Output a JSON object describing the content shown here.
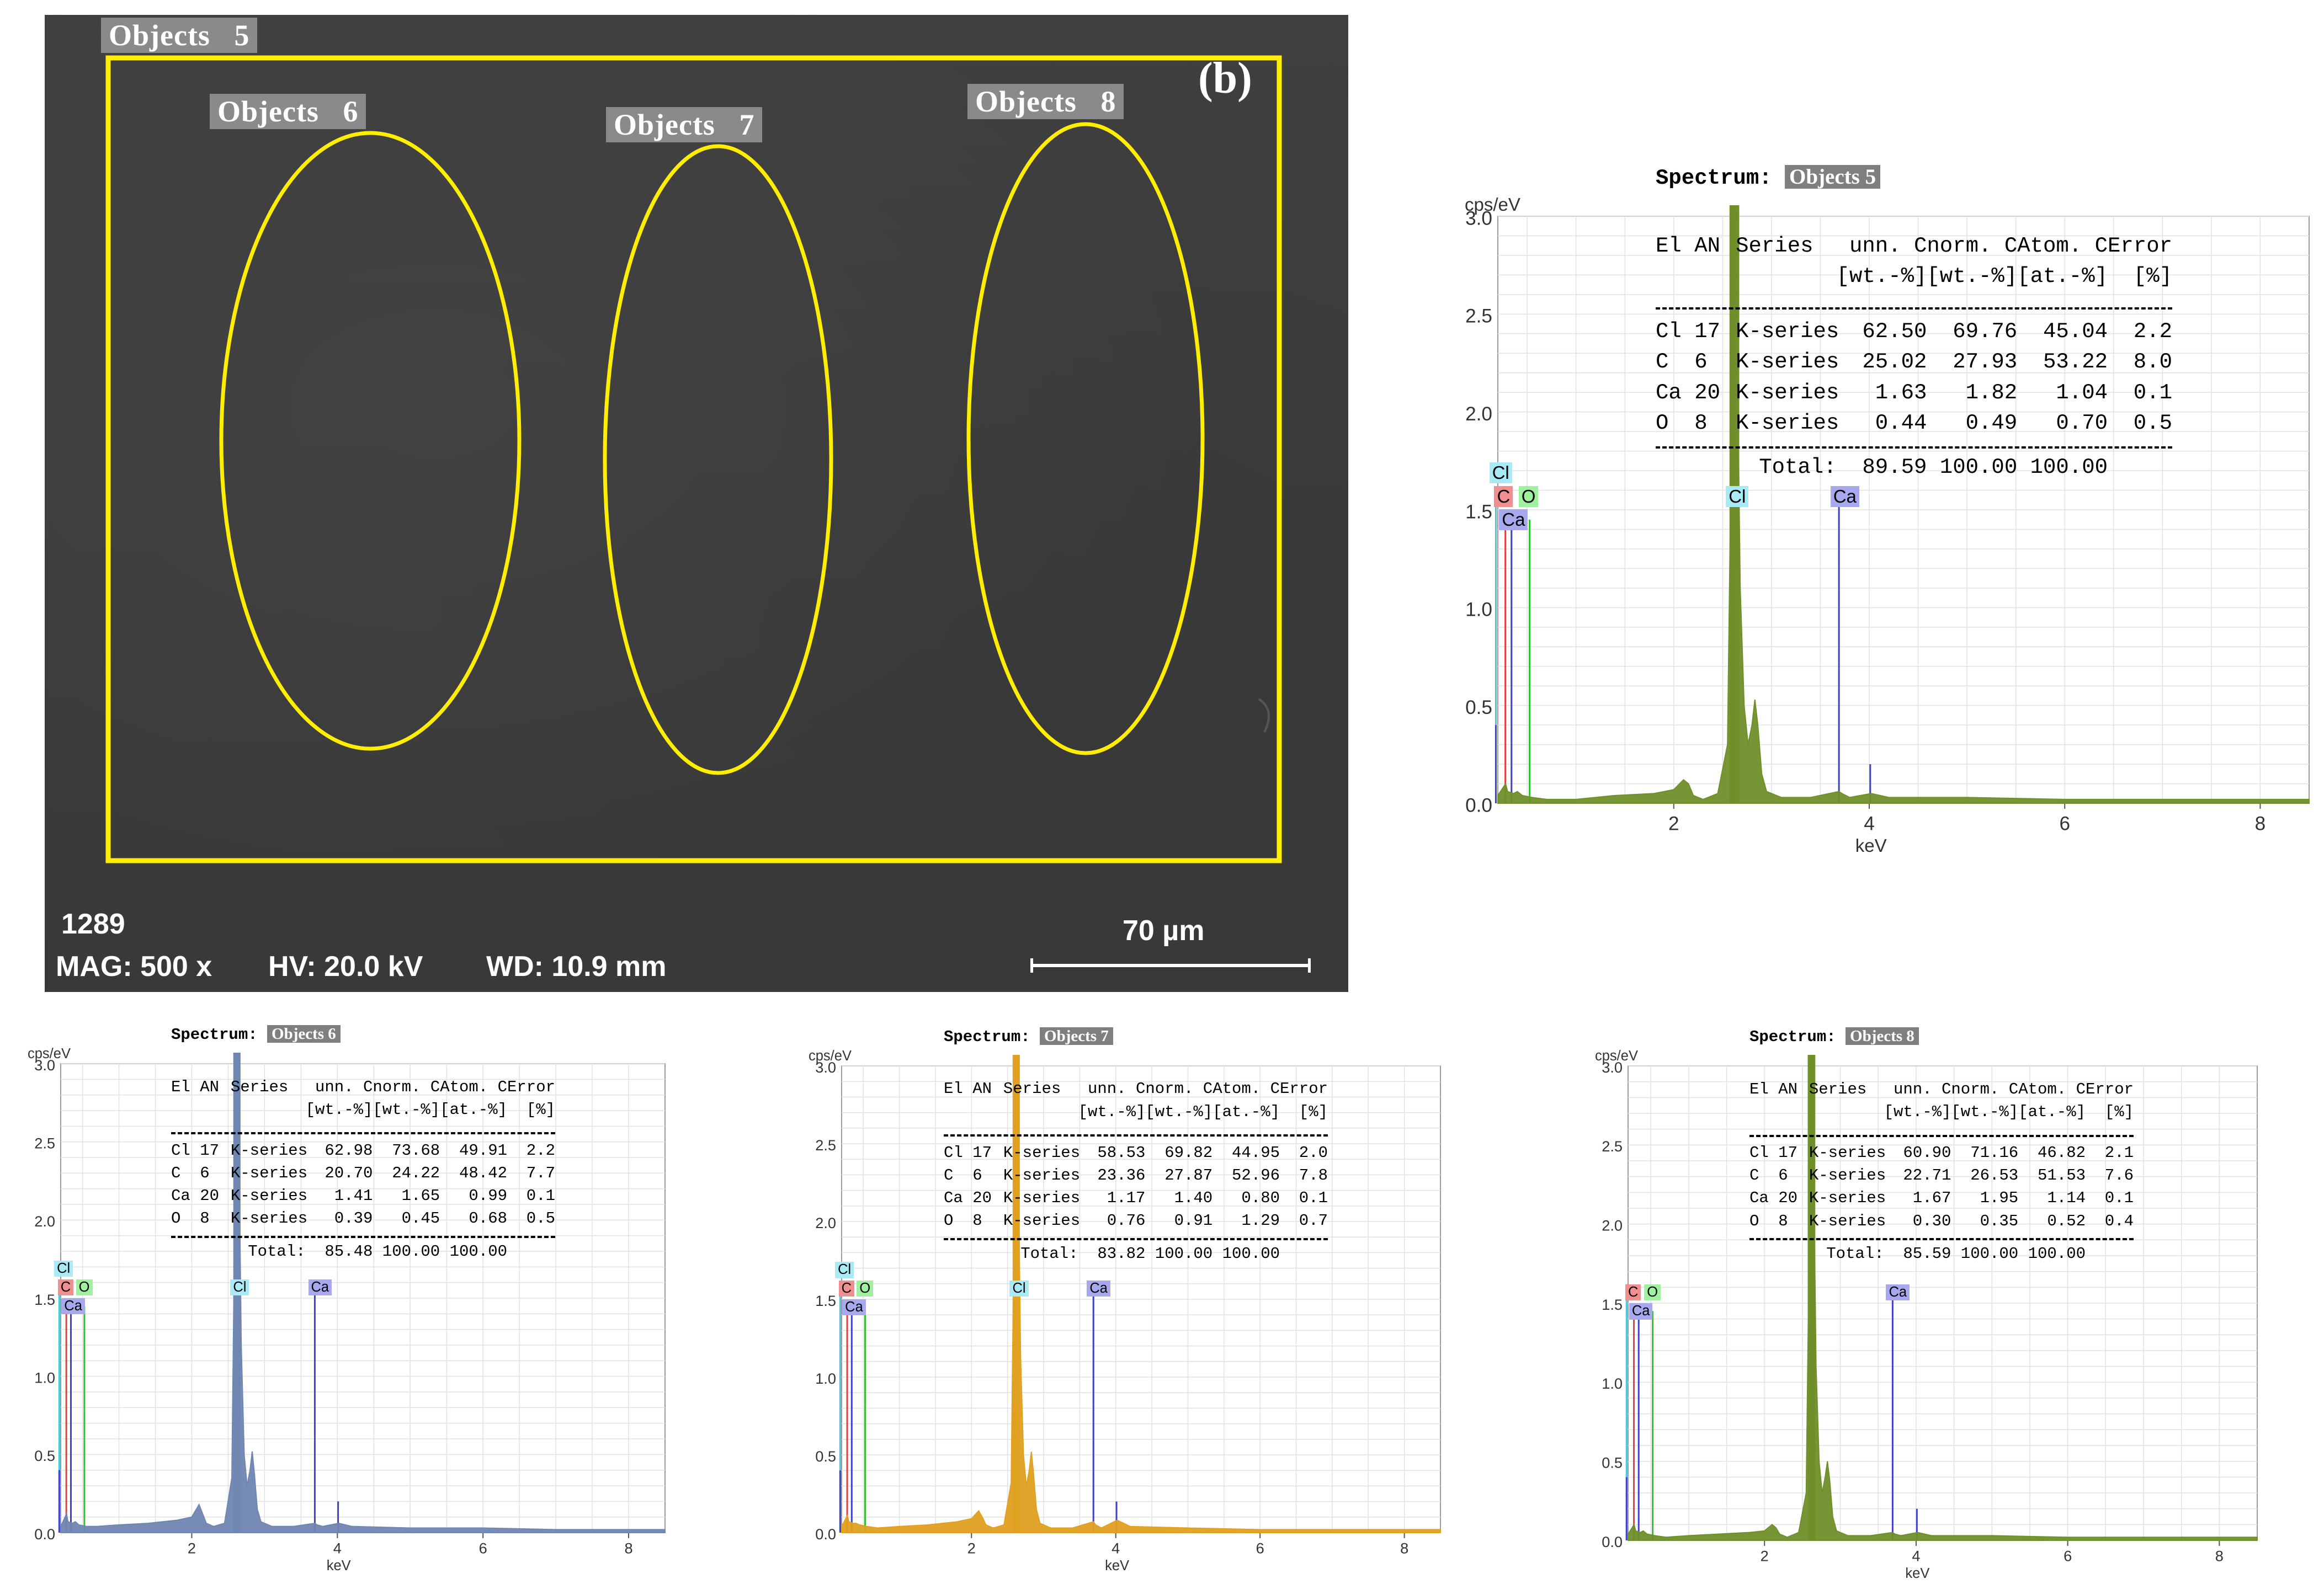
{
  "sem": {
    "panel_letter": "(b)",
    "objects": [
      {
        "word": "Objects",
        "num": "5"
      },
      {
        "word": "Objects",
        "num": "6"
      },
      {
        "word": "Objects",
        "num": "7"
      },
      {
        "word": "Objects",
        "num": "8"
      }
    ],
    "footer_id": "1289",
    "mag": "MAG: 500 x",
    "hv": "HV: 20.0 kV",
    "wd": "WD: 10.9 mm",
    "scale": "70 µm",
    "overlay_color": "#ffee00"
  },
  "chart_data": [
    {
      "type": "line",
      "spectrum_label": "Spectrum:",
      "spectrum_name": "Objects 5",
      "ylabel": "cps/eV",
      "xlabel": "keV",
      "ylim": [
        0,
        3.0
      ],
      "xlim": [
        0.2,
        8.5
      ],
      "yticks": [
        "0.0",
        "0.5",
        "1.0",
        "1.5",
        "2.0",
        "2.5",
        "3.0"
      ],
      "xticks": [
        "2",
        "4",
        "6",
        "8"
      ],
      "color": "#6f8f2a",
      "series": [
        {
          "x": [
            0.2,
            0.28,
            0.3,
            0.36,
            0.4,
            0.45,
            0.55,
            0.7,
            1.0,
            1.4,
            1.8,
            2.0,
            2.1,
            2.15,
            2.2,
            2.3,
            2.45,
            2.55,
            2.58,
            2.62,
            2.65,
            2.68,
            2.72,
            2.76,
            2.8,
            2.83,
            2.86,
            2.9,
            2.95,
            3.1,
            3.4,
            3.69,
            3.72,
            3.8,
            4.02,
            4.2,
            5,
            6,
            7,
            8,
            8.5
          ],
          "y": [
            0.04,
            0.1,
            0.06,
            0.05,
            0.06,
            0.04,
            0.03,
            0.02,
            0.02,
            0.04,
            0.05,
            0.07,
            0.12,
            0.1,
            0.04,
            0.02,
            0.05,
            0.3,
            1.5,
            3.0,
            2.3,
            1.1,
            0.5,
            0.3,
            0.4,
            0.53,
            0.4,
            0.15,
            0.06,
            0.03,
            0.03,
            0.06,
            0.05,
            0.03,
            0.05,
            0.03,
            0.03,
            0.02,
            0.02,
            0.02,
            0.02
          ]
        }
      ],
      "lines": [
        {
          "el": "Cl",
          "kev": 0.18,
          "h": 1.62,
          "color": "#40c8e0"
        },
        {
          "el": "C",
          "kev": 0.277,
          "h": 1.4,
          "color": "#e04040"
        },
        {
          "el": "Ca",
          "kev": 0.34,
          "h": 1.4,
          "color": "#4040c8"
        },
        {
          "el": "O",
          "kev": 0.525,
          "h": 1.45,
          "color": "#30c030"
        },
        {
          "el": "Cl",
          "kev": 2.62,
          "h": 1.45,
          "color": "#40c8e0"
        },
        {
          "el": "Ca",
          "kev": 3.69,
          "h": 1.52,
          "color": "#4040c8"
        },
        {
          "el": "Ca",
          "kev": 4.01,
          "h": 0.2,
          "color": "#4040c8",
          "nolabel": true
        },
        {
          "el": "Cl",
          "kev": 0.18,
          "h": 0.4,
          "color": "#4040c8",
          "nolabel": true
        }
      ],
      "markers": [
        {
          "el": "Cl",
          "kev": 0.2,
          "level": 1.68,
          "bg": "#a8eaf5"
        },
        {
          "el": "C",
          "kev": 0.25,
          "level": 1.56,
          "bg": "#f08f8f"
        },
        {
          "el": "O",
          "kev": 0.5,
          "level": 1.56,
          "bg": "#9ff09f"
        },
        {
          "el": "Ca",
          "kev": 0.3,
          "level": 1.44,
          "bg": "#a8a8ef"
        },
        {
          "el": "Cl",
          "kev": 2.62,
          "level": 1.56,
          "bg": "#a8eaf5"
        },
        {
          "el": "Ca",
          "kev": 3.69,
          "level": 1.56,
          "bg": "#a8a8ef"
        }
      ],
      "table": {
        "header1": [
          "El",
          "AN",
          "Series",
          "unn. C",
          "norm. C",
          "Atom. C",
          "Error"
        ],
        "header2": [
          "",
          "",
          "",
          "[wt.-%]",
          "[wt.-%]",
          "[at.-%]",
          "[%]"
        ],
        "rows": [
          [
            "Cl",
            "17",
            "K-series",
            "62.50",
            "69.76",
            "45.04",
            "2.2"
          ],
          [
            "C",
            "6",
            "K-series",
            "25.02",
            "27.93",
            "53.22",
            "8.0"
          ],
          [
            "Ca",
            "20",
            "K-series",
            "1.63",
            "1.82",
            "1.04",
            "0.1"
          ],
          [
            "O",
            "8",
            "K-series",
            "0.44",
            "0.49",
            "0.70",
            "0.5"
          ]
        ],
        "total_label": "Total:",
        "total": [
          "89.59",
          "100.00",
          "100.00"
        ]
      }
    },
    {
      "type": "line",
      "spectrum_label": "Spectrum:",
      "spectrum_name": "Objects 6",
      "ylabel": "cps/eV",
      "xlabel": "keV",
      "ylim": [
        0,
        3.0
      ],
      "xlim": [
        0.2,
        8.5
      ],
      "yticks": [
        "0.0",
        "0.5",
        "1.0",
        "1.5",
        "2.0",
        "2.5",
        "3.0"
      ],
      "xticks": [
        "2",
        "4",
        "6",
        "8"
      ],
      "color": "#6f86b2",
      "series": [
        {
          "x": [
            0.2,
            0.28,
            0.3,
            0.36,
            0.4,
            0.45,
            0.55,
            0.7,
            1.0,
            1.4,
            1.8,
            2.0,
            2.1,
            2.15,
            2.2,
            2.3,
            2.45,
            2.55,
            2.58,
            2.62,
            2.65,
            2.68,
            2.72,
            2.76,
            2.8,
            2.83,
            2.86,
            2.9,
            2.95,
            3.1,
            3.4,
            3.69,
            3.72,
            3.8,
            4.02,
            4.2,
            5,
            6,
            7,
            8,
            8.5
          ],
          "y": [
            0.04,
            0.12,
            0.07,
            0.06,
            0.07,
            0.05,
            0.04,
            0.04,
            0.05,
            0.06,
            0.08,
            0.1,
            0.18,
            0.12,
            0.06,
            0.04,
            0.06,
            0.35,
            1.6,
            3.0,
            2.4,
            1.2,
            0.5,
            0.3,
            0.4,
            0.52,
            0.38,
            0.15,
            0.07,
            0.04,
            0.04,
            0.06,
            0.05,
            0.04,
            0.06,
            0.04,
            0.03,
            0.03,
            0.02,
            0.02,
            0.02
          ]
        }
      ],
      "lines": [
        {
          "el": "Cl",
          "kev": 0.18,
          "h": 1.62,
          "color": "#40c8e0"
        },
        {
          "el": "C",
          "kev": 0.277,
          "h": 1.4,
          "color": "#e04040"
        },
        {
          "el": "Ca",
          "kev": 0.34,
          "h": 1.4,
          "color": "#4040c8"
        },
        {
          "el": "O",
          "kev": 0.525,
          "h": 1.45,
          "color": "#30c030"
        },
        {
          "el": "Cl",
          "kev": 2.62,
          "h": 1.45,
          "color": "#40c8e0"
        },
        {
          "el": "Ca",
          "kev": 3.69,
          "h": 1.52,
          "color": "#4040c8"
        },
        {
          "el": "Ca",
          "kev": 4.01,
          "h": 0.2,
          "color": "#4040c8",
          "nolabel": true
        },
        {
          "el": "Cl",
          "kev": 0.18,
          "h": 0.4,
          "color": "#4040c8",
          "nolabel": true
        }
      ],
      "markers": [
        {
          "el": "Cl",
          "kev": 0.2,
          "level": 1.68,
          "bg": "#a8eaf5"
        },
        {
          "el": "C",
          "kev": 0.25,
          "level": 1.56,
          "bg": "#f08f8f"
        },
        {
          "el": "O",
          "kev": 0.5,
          "level": 1.56,
          "bg": "#9ff09f"
        },
        {
          "el": "Ca",
          "kev": 0.3,
          "level": 1.44,
          "bg": "#a8a8ef"
        },
        {
          "el": "Cl",
          "kev": 2.62,
          "level": 1.56,
          "bg": "#a8eaf5"
        },
        {
          "el": "Ca",
          "kev": 3.69,
          "level": 1.56,
          "bg": "#a8a8ef"
        }
      ],
      "table": {
        "header1": [
          "El",
          "AN",
          "Series",
          "unn. C",
          "norm. C",
          "Atom. C",
          "Error"
        ],
        "header2": [
          "",
          "",
          "",
          "[wt.-%]",
          "[wt.-%]",
          "[at.-%]",
          "[%]"
        ],
        "rows": [
          [
            "Cl",
            "17",
            "K-series",
            "62.98",
            "73.68",
            "49.91",
            "2.2"
          ],
          [
            "C",
            "6",
            "K-series",
            "20.70",
            "24.22",
            "48.42",
            "7.7"
          ],
          [
            "Ca",
            "20",
            "K-series",
            "1.41",
            "1.65",
            "0.99",
            "0.1"
          ],
          [
            "O",
            "8",
            "K-series",
            "0.39",
            "0.45",
            "0.68",
            "0.5"
          ]
        ],
        "total_label": "Total:",
        "total": [
          "85.48",
          "100.00",
          "100.00"
        ]
      }
    },
    {
      "type": "line",
      "spectrum_label": "Spectrum:",
      "spectrum_name": "Objects 7",
      "ylabel": "cps/eV",
      "xlabel": "keV",
      "ylim": [
        0,
        3.0
      ],
      "xlim": [
        0.2,
        8.5
      ],
      "yticks": [
        "0.0",
        "0.5",
        "1.0",
        "1.5",
        "2.0",
        "2.5",
        "3.0"
      ],
      "xticks": [
        "2",
        "4",
        "6",
        "8"
      ],
      "color": "#e0a020",
      "series": [
        {
          "x": [
            0.2,
            0.28,
            0.3,
            0.36,
            0.4,
            0.45,
            0.55,
            0.7,
            1.0,
            1.4,
            1.8,
            2.0,
            2.1,
            2.15,
            2.2,
            2.3,
            2.45,
            2.55,
            2.58,
            2.62,
            2.65,
            2.68,
            2.72,
            2.76,
            2.8,
            2.83,
            2.86,
            2.9,
            2.95,
            3.1,
            3.4,
            3.69,
            3.72,
            3.8,
            4.02,
            4.2,
            5,
            6,
            7,
            8,
            8.5
          ],
          "y": [
            0.04,
            0.11,
            0.07,
            0.06,
            0.06,
            0.05,
            0.04,
            0.03,
            0.04,
            0.05,
            0.07,
            0.09,
            0.14,
            0.1,
            0.05,
            0.03,
            0.05,
            0.32,
            1.55,
            3.0,
            2.35,
            1.15,
            0.5,
            0.3,
            0.4,
            0.52,
            0.38,
            0.15,
            0.06,
            0.03,
            0.03,
            0.07,
            0.05,
            0.03,
            0.08,
            0.04,
            0.03,
            0.02,
            0.02,
            0.02,
            0.02
          ]
        }
      ],
      "lines": [
        {
          "el": "Cl",
          "kev": 0.18,
          "h": 1.62,
          "color": "#40c8e0"
        },
        {
          "el": "C",
          "kev": 0.277,
          "h": 1.4,
          "color": "#e04040"
        },
        {
          "el": "Ca",
          "kev": 0.34,
          "h": 1.4,
          "color": "#4040c8"
        },
        {
          "el": "O",
          "kev": 0.525,
          "h": 1.45,
          "color": "#30c030"
        },
        {
          "el": "Cl",
          "kev": 2.62,
          "h": 1.45,
          "color": "#40c8e0"
        },
        {
          "el": "Ca",
          "kev": 3.69,
          "h": 1.52,
          "color": "#4040c8"
        },
        {
          "el": "Ca",
          "kev": 4.01,
          "h": 0.2,
          "color": "#4040c8",
          "nolabel": true
        },
        {
          "el": "Cl",
          "kev": 0.18,
          "h": 0.4,
          "color": "#4040c8",
          "nolabel": true
        }
      ],
      "markers": [
        {
          "el": "Cl",
          "kev": 0.2,
          "level": 1.68,
          "bg": "#a8eaf5"
        },
        {
          "el": "C",
          "kev": 0.25,
          "level": 1.56,
          "bg": "#f08f8f"
        },
        {
          "el": "O",
          "kev": 0.5,
          "level": 1.56,
          "bg": "#9ff09f"
        },
        {
          "el": "Ca",
          "kev": 0.3,
          "level": 1.44,
          "bg": "#a8a8ef"
        },
        {
          "el": "Cl",
          "kev": 2.62,
          "level": 1.56,
          "bg": "#a8eaf5"
        },
        {
          "el": "Ca",
          "kev": 3.69,
          "level": 1.56,
          "bg": "#a8a8ef"
        }
      ],
      "table": {
        "header1": [
          "El",
          "AN",
          "Series",
          "unn. C",
          "norm. C",
          "Atom. C",
          "Error"
        ],
        "header2": [
          "",
          "",
          "",
          "[wt.-%]",
          "[wt.-%]",
          "[at.-%]",
          "[%]"
        ],
        "rows": [
          [
            "Cl",
            "17",
            "K-series",
            "58.53",
            "69.82",
            "44.95",
            "2.0"
          ],
          [
            "C",
            "6",
            "K-series",
            "23.36",
            "27.87",
            "52.96",
            "7.8"
          ],
          [
            "Ca",
            "20",
            "K-series",
            "1.17",
            "1.40",
            "0.80",
            "0.1"
          ],
          [
            "O",
            "8",
            "K-series",
            "0.76",
            "0.91",
            "1.29",
            "0.7"
          ]
        ],
        "total_label": "Total:",
        "total": [
          "83.82",
          "100.00",
          "100.00"
        ]
      }
    },
    {
      "type": "line",
      "spectrum_label": "Spectrum:",
      "spectrum_name": "Objects 8",
      "ylabel": "cps/eV",
      "xlabel": "keV",
      "ylim": [
        0,
        3.0
      ],
      "xlim": [
        0.2,
        8.5
      ],
      "yticks": [
        "0.0",
        "0.5",
        "1.0",
        "1.5",
        "2.0",
        "2.5",
        "3.0"
      ],
      "xticks": [
        "2",
        "4",
        "6",
        "8"
      ],
      "color": "#6f8f2a",
      "series": [
        {
          "x": [
            0.2,
            0.28,
            0.3,
            0.36,
            0.4,
            0.45,
            0.55,
            0.7,
            1.0,
            1.4,
            1.8,
            2.0,
            2.1,
            2.15,
            2.2,
            2.3,
            2.45,
            2.55,
            2.58,
            2.62,
            2.65,
            2.68,
            2.72,
            2.76,
            2.8,
            2.83,
            2.86,
            2.9,
            2.95,
            3.1,
            3.4,
            3.69,
            3.72,
            3.8,
            4.02,
            4.2,
            5,
            6,
            7,
            8,
            8.5
          ],
          "y": [
            0.04,
            0.1,
            0.06,
            0.05,
            0.06,
            0.04,
            0.03,
            0.02,
            0.03,
            0.04,
            0.05,
            0.06,
            0.1,
            0.08,
            0.04,
            0.02,
            0.05,
            0.3,
            1.5,
            3.0,
            2.3,
            1.1,
            0.5,
            0.3,
            0.4,
            0.5,
            0.38,
            0.15,
            0.06,
            0.03,
            0.03,
            0.05,
            0.04,
            0.03,
            0.05,
            0.03,
            0.03,
            0.02,
            0.02,
            0.02,
            0.02
          ]
        }
      ],
      "lines": [
        {
          "el": "Cl",
          "kev": 0.18,
          "h": 1.62,
          "color": "#40c8e0"
        },
        {
          "el": "C",
          "kev": 0.277,
          "h": 1.4,
          "color": "#e04040"
        },
        {
          "el": "Ca",
          "kev": 0.34,
          "h": 1.4,
          "color": "#4040c8"
        },
        {
          "el": "O",
          "kev": 0.525,
          "h": 1.45,
          "color": "#30c030"
        },
        {
          "el": "Cl",
          "kev": 2.62,
          "h": 1.45,
          "color": "#40c8e0",
          "nolabel": true
        },
        {
          "el": "Ca",
          "kev": 3.69,
          "h": 1.52,
          "color": "#4040c8"
        },
        {
          "el": "Ca",
          "kev": 4.01,
          "h": 0.2,
          "color": "#4040c8",
          "nolabel": true
        },
        {
          "el": "Cl",
          "kev": 0.18,
          "h": 0.4,
          "color": "#4040c8",
          "nolabel": true
        }
      ],
      "markers": [
        {
          "el": "C",
          "kev": 0.25,
          "level": 1.56,
          "bg": "#f08f8f"
        },
        {
          "el": "O",
          "kev": 0.5,
          "level": 1.56,
          "bg": "#9ff09f"
        },
        {
          "el": "Ca",
          "kev": 0.3,
          "level": 1.44,
          "bg": "#a8a8ef"
        },
        {
          "el": "Ca",
          "kev": 3.69,
          "level": 1.56,
          "bg": "#a8a8ef"
        }
      ],
      "table": {
        "header1": [
          "El",
          "AN",
          "Series",
          "unn. C",
          "norm. C",
          "Atom. C",
          "Error"
        ],
        "header2": [
          "",
          "",
          "",
          "[wt.-%]",
          "[wt.-%]",
          "[at.-%]",
          "[%]"
        ],
        "rows": [
          [
            "Cl",
            "17",
            "K-series",
            "60.90",
            "71.16",
            "46.82",
            "2.1"
          ],
          [
            "C",
            "6",
            "K-series",
            "22.71",
            "26.53",
            "51.53",
            "7.6"
          ],
          [
            "Ca",
            "20",
            "K-series",
            "1.67",
            "1.95",
            "1.14",
            "0.1"
          ],
          [
            "O",
            "8",
            "K-series",
            "0.30",
            "0.35",
            "0.52",
            "0.4"
          ]
        ],
        "total_label": "Total:",
        "total": [
          "85.59",
          "100.00",
          "100.00"
        ]
      }
    }
  ]
}
